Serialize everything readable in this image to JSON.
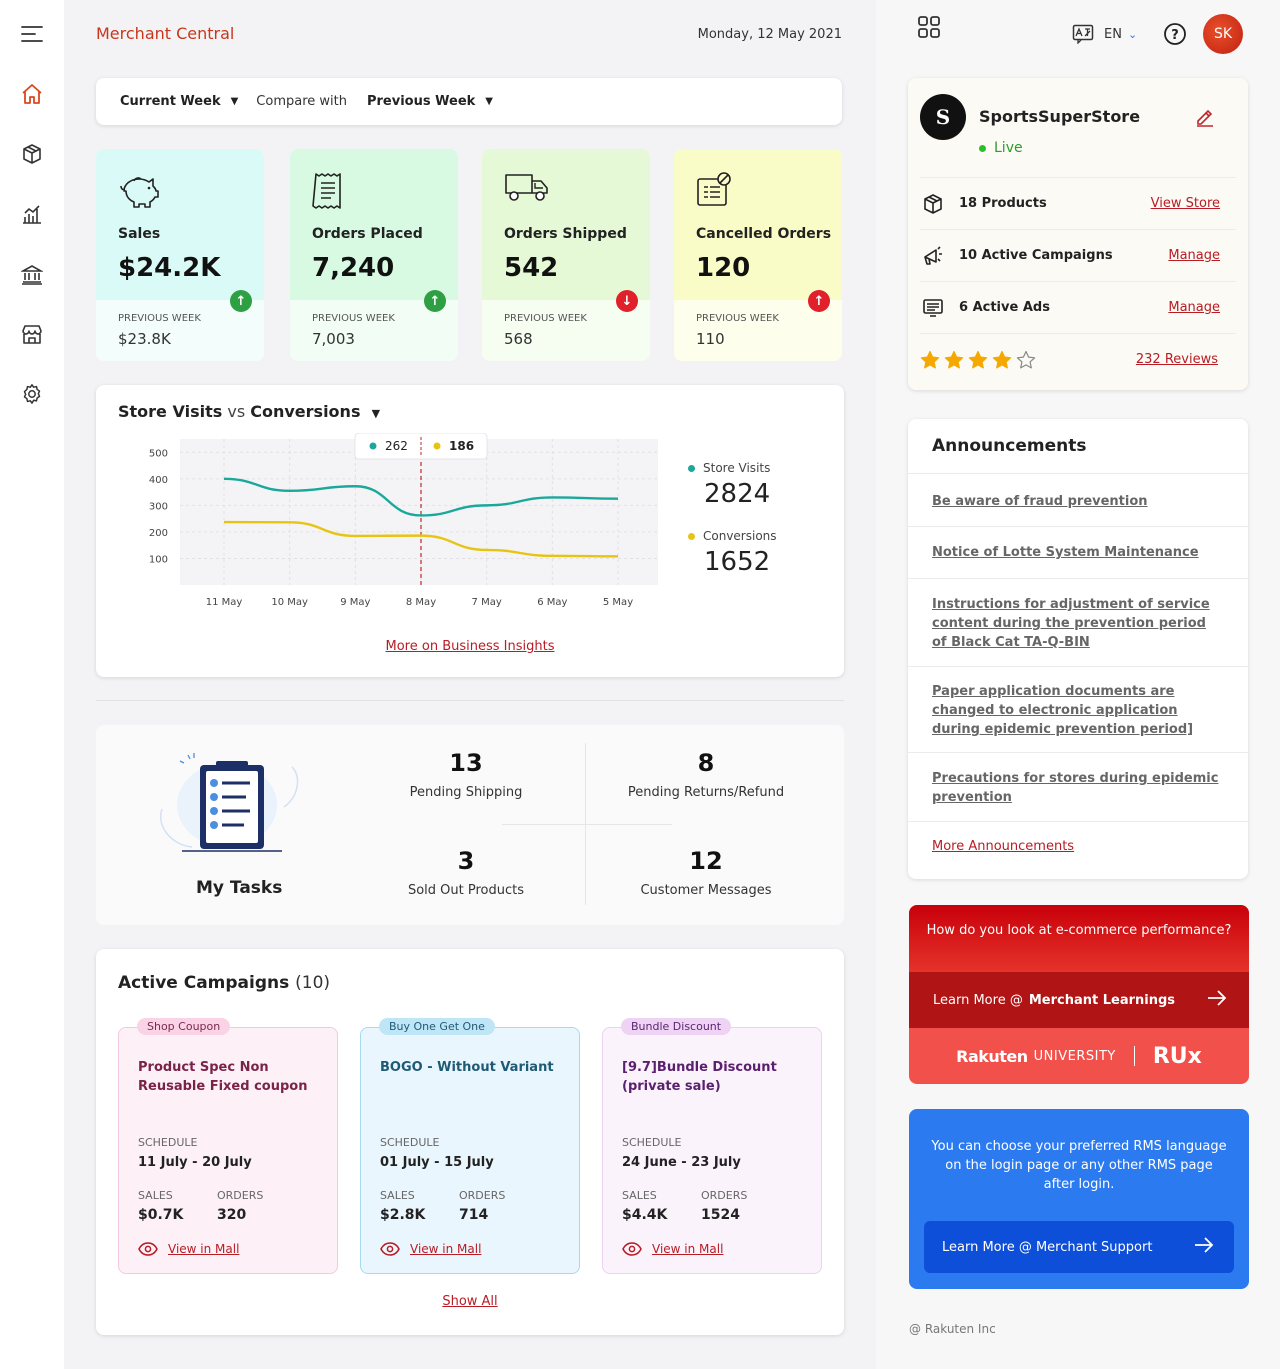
{
  "header": {
    "brand": "Merchant Central",
    "date": "Monday, 12 May 2021",
    "language": "EN",
    "avatar_initials": "SK"
  },
  "filters": {
    "current": "Current Week",
    "compare_label": "Compare with",
    "previous": "Previous Week"
  },
  "stats": [
    {
      "label": "Sales",
      "value": "$24.2K",
      "prev_label": "PREVIOUS WEEK",
      "prev_value": "$23.8K",
      "trend": "up",
      "bg": "#d9faf6",
      "icon": "piggy-bank-icon"
    },
    {
      "label": "Orders Placed",
      "value": "7,240",
      "prev_label": "PREVIOUS WEEK",
      "prev_value": "7,003",
      "trend": "up",
      "bg": "#d8fae2",
      "icon": "receipt-icon"
    },
    {
      "label": "Orders Shipped",
      "value": "542",
      "prev_label": "PREVIOUS WEEK",
      "prev_value": "568",
      "trend": "down",
      "bg": "#e5f9d6",
      "icon": "truck-icon"
    },
    {
      "label": "Cancelled Orders",
      "value": "120",
      "prev_label": "PREVIOUS WEEK",
      "prev_value": "110",
      "trend": "up-bad",
      "bg": "#fafcc8",
      "icon": "cancelled-order-icon"
    }
  ],
  "visits_chart": {
    "title_a": "Store Visits",
    "title_vs": "vs",
    "title_b": "Conversions",
    "tooltip_a": "262",
    "tooltip_b": "186",
    "legend": [
      {
        "name": "Store Visits",
        "value": "2824",
        "color": "#1aa89a"
      },
      {
        "name": "Conversions",
        "value": "1652",
        "color": "#e8c412"
      }
    ],
    "more_link": "More on Business Insights"
  },
  "chart_data": {
    "type": "line",
    "x": [
      "11 May",
      "10 May",
      "9 May",
      "8 May",
      "7 May",
      "6 May",
      "5 May"
    ],
    "y_ticks": [
      500,
      400,
      300,
      200,
      100
    ],
    "ylim": [
      0,
      550
    ],
    "highlight_x": "8 May",
    "series": [
      {
        "name": "Store Visits",
        "color": "#1aa89a",
        "values": [
          400,
          355,
          372,
          262,
          300,
          330,
          325
        ]
      },
      {
        "name": "Conversions",
        "color": "#e8c412",
        "values": [
          237,
          236,
          185,
          186,
          132,
          110,
          108
        ]
      }
    ]
  },
  "tasks": {
    "title": "My Tasks",
    "items": [
      {
        "count": "13",
        "label": "Pending Shipping"
      },
      {
        "count": "8",
        "label": "Pending Returns/Refund"
      },
      {
        "count": "3",
        "label": "Sold Out Products"
      },
      {
        "count": "12",
        "label": "Customer Messages"
      }
    ]
  },
  "campaigns": {
    "title": "Active Campaigns",
    "count": "(10)",
    "show_all": "Show All",
    "items": [
      {
        "tag": "Shop Coupon",
        "name": "Product Spec Non Reusable Fixed coupon",
        "schedule_label": "SCHEDULE",
        "schedule": "11 July - 20 July",
        "sales_label": "SALES",
        "sales": "$0.7K",
        "orders_label": "ORDERS",
        "orders": "320",
        "link": "View in Mall",
        "bg": "#fdf1f7",
        "border": "#f4c9dd",
        "tag_bg": "#fbd3e6",
        "tag_color": "#7a2a4c",
        "name_color": "#7a2349"
      },
      {
        "tag": "Buy One Get One",
        "name": "BOGO - Without Variant",
        "schedule_label": "SCHEDULE",
        "schedule": "01 July - 15 July",
        "sales_label": "SALES",
        "sales": "$2.8K",
        "orders_label": "ORDERS",
        "orders": "714",
        "link": "View in Mall",
        "bg": "#eaf6fd",
        "border": "#a6dbef",
        "tag_bg": "#bfe6f6",
        "tag_color": "#1f5a75",
        "name_color": "#1f5a75"
      },
      {
        "tag": "Bundle Discount",
        "name": "[9.7]Bundle Discount (private sale)",
        "schedule_label": "SCHEDULE",
        "schedule": "24 June - 23 July",
        "sales_label": "SALES",
        "sales": "$4.4K",
        "orders_label": "ORDERS",
        "orders": "1524",
        "link": "View in Mall",
        "bg": "#fbf3fc",
        "border": "#ecd1f0",
        "tag_bg": "#efd3f5",
        "tag_color": "#5a2570",
        "name_color": "#5a1f6e"
      }
    ]
  },
  "store": {
    "name": "SportsSuperStore",
    "status": "Live",
    "rows": [
      {
        "text": "18 Products",
        "link": "View Store",
        "icon": "box-icon"
      },
      {
        "text": "10 Active Campaigns",
        "link": "Manage",
        "icon": "megaphone-icon"
      },
      {
        "text": "6 Active Ads",
        "link": "Manage",
        "icon": "ad-screen-icon"
      }
    ],
    "rating": 4,
    "reviews": "232 Reviews"
  },
  "announcements": {
    "title": "Announcements",
    "items": [
      "Be aware of fraud prevention",
      "Notice of Lotte System Maintenance",
      "Instructions for adjustment of service content during the prevention period of Black Cat TA-Q-BIN",
      "Paper application documents are changed to electronic application during epidemic prevention period]",
      "Precautions for stores during epidemic prevention"
    ],
    "more": "More Announcements"
  },
  "learning": {
    "question": "How do you look at e-commerce performance?",
    "learn_prefix": "Learn More @",
    "learn_target": "Merchant Learnings",
    "brand_a": "Rakuten",
    "brand_b": "UNIVERSITY",
    "brand_c": "RUx"
  },
  "support": {
    "text": "You can choose your preferred RMS language on the login page or any other RMS page after login.",
    "button": "Learn More @ Merchant Support"
  },
  "footer": {
    "copyright": "@ Rakuten Inc"
  }
}
